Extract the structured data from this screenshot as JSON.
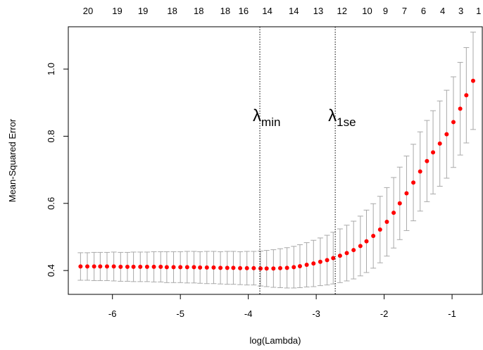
{
  "chart_data": {
    "type": "errorbar",
    "x_label": "log(Lambda)",
    "y_label": "Mean-Squared Error",
    "xlim": [
      -6.65,
      -0.555
    ],
    "ylim": [
      0.329,
      1.126
    ],
    "xticks": [
      -6,
      -5,
      -4,
      -3,
      -2,
      -1
    ],
    "yticks": [
      0.4,
      0.6,
      0.8,
      {
        "value": 1.0,
        "label": "1.0"
      }
    ],
    "x2ticks": [
      {
        "value": -6.36,
        "label": "20"
      },
      {
        "value": -5.93,
        "label": "19"
      },
      {
        "value": -5.55,
        "label": "19"
      },
      {
        "value": -5.12,
        "label": "18"
      },
      {
        "value": -4.73,
        "label": "18"
      },
      {
        "value": -4.34,
        "label": "18"
      },
      {
        "value": -4.07,
        "label": "16"
      },
      {
        "value": -3.72,
        "label": "14"
      },
      {
        "value": -3.33,
        "label": "14"
      },
      {
        "value": -2.97,
        "label": "13"
      },
      {
        "value": -2.62,
        "label": "12"
      },
      {
        "value": -2.25,
        "label": "10"
      },
      {
        "value": -1.98,
        "label": "9"
      },
      {
        "value": -1.7,
        "label": "7"
      },
      {
        "value": -1.42,
        "label": "6"
      },
      {
        "value": -1.14,
        "label": "4"
      },
      {
        "value": -0.87,
        "label": "3"
      },
      {
        "value": -0.61,
        "label": "1"
      }
    ],
    "x": [
      -6.47,
      -6.37,
      -6.27,
      -6.18,
      -6.08,
      -5.98,
      -5.88,
      -5.78,
      -5.69,
      -5.59,
      -5.49,
      -5.39,
      -5.29,
      -5.2,
      -5.1,
      -5.0,
      -4.9,
      -4.8,
      -4.71,
      -4.61,
      -4.51,
      -4.41,
      -4.31,
      -4.22,
      -4.12,
      -4.02,
      -3.92,
      -3.82,
      -3.73,
      -3.63,
      -3.53,
      -3.43,
      -3.33,
      -3.24,
      -3.14,
      -3.04,
      -2.94,
      -2.84,
      -2.75,
      -2.65,
      -2.55,
      -2.45,
      -2.35,
      -2.26,
      -2.16,
      -2.06,
      -1.96,
      -1.86,
      -1.77,
      -1.67,
      -1.57,
      -1.47,
      -1.37,
      -1.28,
      -1.18,
      -1.08,
      -0.98,
      -0.88,
      -0.79,
      -0.69
    ],
    "series": [
      {
        "color": "#ff0000",
        "error_color": "#a9a9a9",
        "values": [
          0.412,
          0.412,
          0.412,
          0.412,
          0.412,
          0.412,
          0.411,
          0.411,
          0.411,
          0.411,
          0.411,
          0.411,
          0.411,
          0.41,
          0.41,
          0.41,
          0.41,
          0.41,
          0.409,
          0.409,
          0.409,
          0.408,
          0.408,
          0.408,
          0.407,
          0.407,
          0.407,
          0.406,
          0.406,
          0.406,
          0.407,
          0.408,
          0.41,
          0.413,
          0.417,
          0.421,
          0.426,
          0.431,
          0.437,
          0.444,
          0.452,
          0.461,
          0.473,
          0.487,
          0.503,
          0.522,
          0.545,
          0.572,
          0.6,
          0.63,
          0.662,
          0.695,
          0.726,
          0.752,
          0.778,
          0.806,
          0.842,
          0.882,
          0.922,
          0.965
        ],
        "errors": [
          0.041,
          0.041,
          0.042,
          0.042,
          0.042,
          0.043,
          0.043,
          0.043,
          0.044,
          0.044,
          0.044,
          0.045,
          0.045,
          0.046,
          0.046,
          0.046,
          0.047,
          0.047,
          0.047,
          0.048,
          0.048,
          0.048,
          0.049,
          0.049,
          0.049,
          0.05,
          0.05,
          0.052,
          0.054,
          0.056,
          0.058,
          0.06,
          0.062,
          0.064,
          0.066,
          0.069,
          0.071,
          0.074,
          0.077,
          0.08,
          0.083,
          0.086,
          0.089,
          0.093,
          0.096,
          0.099,
          0.102,
          0.105,
          0.108,
          0.111,
          0.114,
          0.118,
          0.121,
          0.124,
          0.127,
          0.131,
          0.135,
          0.138,
          0.142,
          0.145
        ]
      }
    ],
    "annotations": [
      {
        "symbol": "λ",
        "subscript": "min",
        "x": -3.83,
        "y": 0.845
      },
      {
        "symbol": "λ",
        "subscript": "1se",
        "x": -2.72,
        "y": 0.845
      }
    ]
  }
}
